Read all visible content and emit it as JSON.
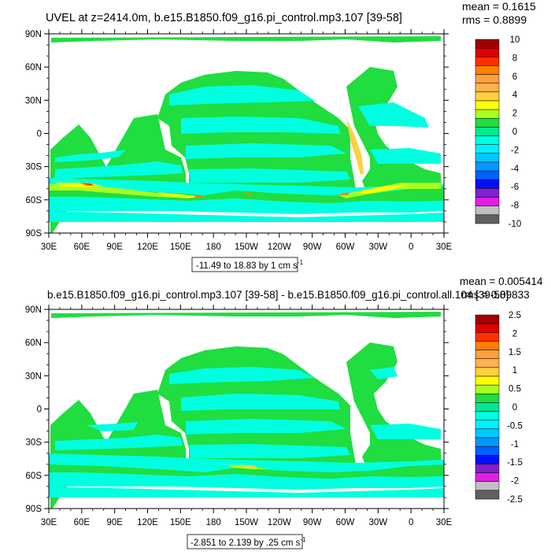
{
  "panels": [
    {
      "title": "UVEL at z=2414.0m, b.e15.B1850.f09_g16.pi_control.mp3.107 [39-58]",
      "stats_line1": "mean = 0.1615",
      "stats_line2": "rms = 0.8899",
      "range_label": "-11.49 to 18.83 by 1 cm s",
      "range_superscript": "-1"
    },
    {
      "title": "b.e15.B1850.f09_g16.pi_control.mp3.107 [39-58] - b.e15.B1850.f09_g16.pi_control.all.104 [39-58]",
      "stats_line1": "mean = 0.005414",
      "stats_line2": "rms = 0.09833",
      "range_label": "-2.851 to 2.139 by .25 cm s",
      "range_superscript": "-1"
    }
  ],
  "chart_data": [
    {
      "type": "heatmap",
      "title": "UVEL at z=2414.0m, b.e15.B1850.f09_g16.pi_control.mp3.107 [39-58]",
      "x_tick_labels": [
        "30E",
        "60E",
        "90E",
        "120E",
        "150E",
        "180",
        "150W",
        "120W",
        "90W",
        "60W",
        "30W",
        "0",
        "30E"
      ],
      "y_tick_labels": [
        "90N",
        "60N",
        "30N",
        "0",
        "30S",
        "60S",
        "90S"
      ],
      "xlim": [
        30,
        390
      ],
      "ylim": [
        -90,
        90
      ],
      "colorbar_labels": [
        "10",
        "8",
        "6",
        "4",
        "2",
        "0",
        "-2",
        "-4",
        "-6",
        "-8",
        "-10"
      ],
      "colorbar_colors": [
        "#a00000",
        "#e00000",
        "#ff3000",
        "#ff8000",
        "#ffa040",
        "#ffb050",
        "#ffd040",
        "#ffff00",
        "#a8ff20",
        "#20dd40",
        "#00e890",
        "#00ffe0",
        "#00f0ff",
        "#00c8ff",
        "#0098ff",
        "#0060ff",
        "#0010ff",
        "#8020d0",
        "#e020e0",
        "#c0c0c0",
        "#606060"
      ],
      "mean": 0.1615,
      "rms": 0.8899
    },
    {
      "type": "heatmap",
      "title": "b.e15.B1850.f09_g16.pi_control.mp3.107 [39-58] - b.e15.B1850.f09_g16.pi_control.all.104 [39-58]",
      "x_tick_labels": [
        "30E",
        "60E",
        "90E",
        "120E",
        "150E",
        "180",
        "150W",
        "120W",
        "90W",
        "60W",
        "30W",
        "0",
        "30E"
      ],
      "y_tick_labels": [
        "90N",
        "60N",
        "30N",
        "0",
        "30S",
        "60S",
        "90S"
      ],
      "xlim": [
        30,
        390
      ],
      "ylim": [
        -90,
        90
      ],
      "colorbar_labels": [
        "2.5",
        "2",
        "1.5",
        "1",
        "0.5",
        "0",
        "-0.5",
        "-1",
        "-1.5",
        "-2",
        "-2.5"
      ],
      "colorbar_colors": [
        "#a00000",
        "#e00000",
        "#ff3000",
        "#ff8000",
        "#ffa040",
        "#ffb050",
        "#ffd040",
        "#ffff00",
        "#a8ff20",
        "#20dd40",
        "#00e890",
        "#00ffe0",
        "#00f0ff",
        "#00c8ff",
        "#0098ff",
        "#0060ff",
        "#0010ff",
        "#8020d0",
        "#e020e0",
        "#c0c0c0",
        "#606060"
      ],
      "mean": 0.005414,
      "rms": 0.09833
    }
  ]
}
